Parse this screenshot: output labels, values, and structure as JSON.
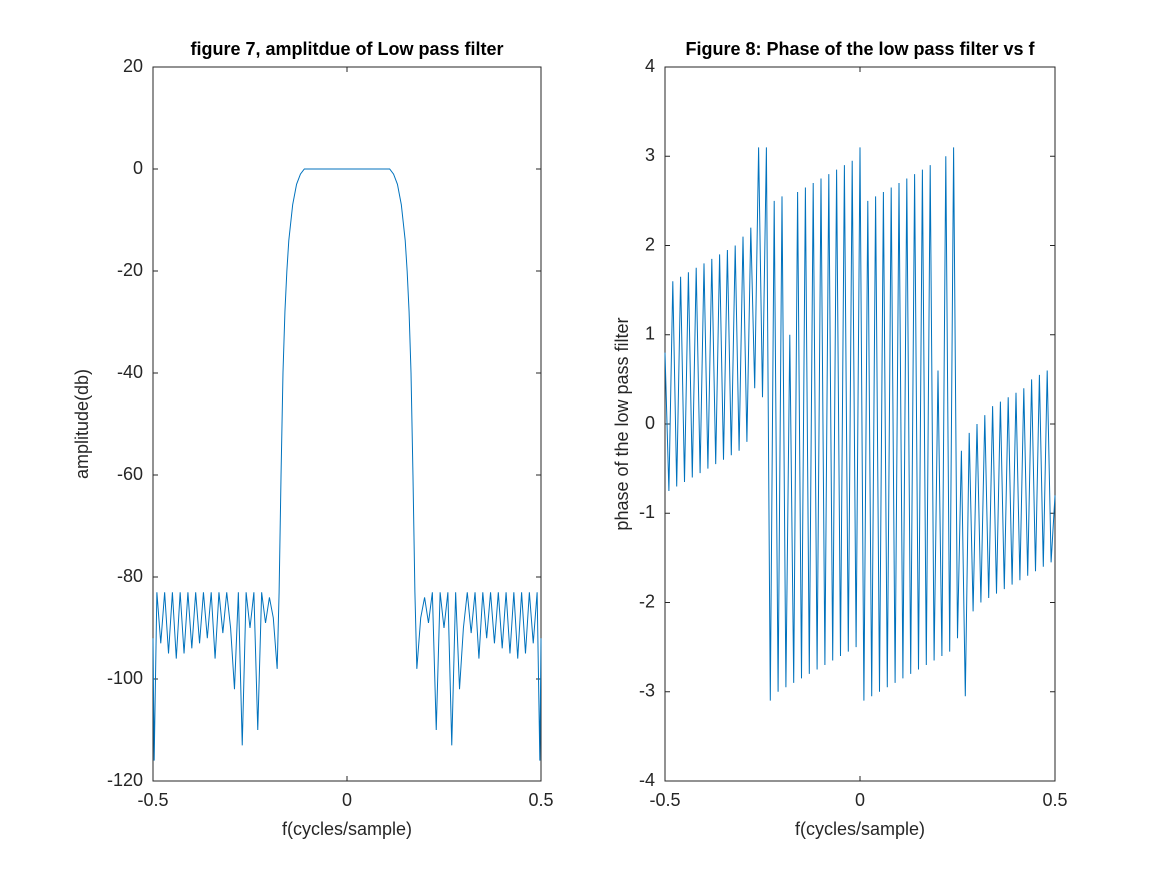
{
  "chart_data": [
    {
      "type": "line",
      "title": "figure 7, amplitdue of Low pass filter",
      "xlabel": "f(cycles/sample)",
      "ylabel": "amplitude(db)",
      "color": "#0072bd",
      "xlim": [
        -0.5,
        0.5
      ],
      "xticks": [
        -0.5,
        0,
        0.5
      ],
      "ylim": [
        -120,
        20
      ],
      "yticks": [
        -120,
        -100,
        -80,
        -60,
        -40,
        -20,
        0,
        20
      ],
      "x": [
        -0.5,
        -0.497,
        -0.49,
        -0.48,
        -0.47,
        -0.46,
        -0.45,
        -0.44,
        -0.43,
        -0.42,
        -0.41,
        -0.4,
        -0.39,
        -0.38,
        -0.37,
        -0.36,
        -0.35,
        -0.34,
        -0.33,
        -0.32,
        -0.31,
        -0.3,
        -0.29,
        -0.28,
        -0.27,
        -0.26,
        -0.25,
        -0.24,
        -0.23,
        -0.22,
        -0.21,
        -0.2,
        -0.19,
        -0.18,
        -0.175,
        -0.17,
        -0.165,
        -0.16,
        -0.155,
        -0.15,
        -0.14,
        -0.13,
        -0.12,
        -0.11,
        0,
        0.11,
        0.12,
        0.13,
        0.14,
        0.15,
        0.155,
        0.16,
        0.165,
        0.17,
        0.175,
        0.18,
        0.19,
        0.2,
        0.21,
        0.22,
        0.23,
        0.24,
        0.25,
        0.26,
        0.27,
        0.28,
        0.29,
        0.3,
        0.31,
        0.32,
        0.33,
        0.34,
        0.35,
        0.36,
        0.37,
        0.38,
        0.39,
        0.4,
        0.41,
        0.42,
        0.43,
        0.44,
        0.45,
        0.46,
        0.47,
        0.48,
        0.49,
        0.497,
        0.5
      ],
      "values": [
        -92,
        -116,
        -83,
        -93,
        -83,
        -95,
        -83,
        -96,
        -83,
        -95,
        -83,
        -94,
        -83,
        -93,
        -83,
        -92,
        -83,
        -96,
        -83,
        -91,
        -83,
        -90,
        -102,
        -83,
        -113,
        -83,
        -90,
        -83,
        -110,
        -83,
        -89,
        -84,
        -88,
        -98,
        -83,
        -60,
        -40,
        -28,
        -20,
        -14,
        -7,
        -3,
        -1,
        0,
        0,
        0,
        -1,
        -3,
        -7,
        -14,
        -20,
        -28,
        -40,
        -60,
        -83,
        -98,
        -88,
        -84,
        -89,
        -83,
        -110,
        -83,
        -90,
        -83,
        -113,
        -83,
        -102,
        -90,
        -83,
        -91,
        -83,
        -96,
        -83,
        -92,
        -83,
        -93,
        -83,
        -94,
        -83,
        -95,
        -83,
        -96,
        -83,
        -95,
        -83,
        -93,
        -83,
        -116,
        -92
      ]
    },
    {
      "type": "line",
      "title": "Figure 8: Phase of the low pass filter vs f",
      "xlabel": "f(cycles/sample)",
      "ylabel": "phase of the low pass filter",
      "color": "#0072bd",
      "xlim": [
        -0.5,
        0.5
      ],
      "xticks": [
        -0.5,
        0,
        0.5
      ],
      "ylim": [
        -4,
        4
      ],
      "yticks": [
        -4,
        -3,
        -2,
        -1,
        0,
        1,
        2,
        3,
        4
      ],
      "x": [
        -0.5,
        -0.49,
        -0.48,
        -0.47,
        -0.46,
        -0.45,
        -0.44,
        -0.43,
        -0.42,
        -0.41,
        -0.4,
        -0.39,
        -0.38,
        -0.37,
        -0.36,
        -0.35,
        -0.34,
        -0.33,
        -0.32,
        -0.31,
        -0.3,
        -0.29,
        -0.28,
        -0.27,
        -0.26,
        -0.25,
        -0.24,
        -0.23,
        -0.22,
        -0.21,
        -0.2,
        -0.19,
        -0.18,
        -0.17,
        -0.16,
        -0.15,
        -0.14,
        -0.13,
        -0.12,
        -0.11,
        -0.1,
        -0.09,
        -0.08,
        -0.07,
        -0.06,
        -0.05,
        -0.04,
        -0.03,
        -0.02,
        -0.01,
        0,
        0.01,
        0.02,
        0.03,
        0.04,
        0.05,
        0.06,
        0.07,
        0.08,
        0.09,
        0.1,
        0.11,
        0.12,
        0.13,
        0.14,
        0.15,
        0.16,
        0.17,
        0.18,
        0.19,
        0.2,
        0.21,
        0.22,
        0.23,
        0.24,
        0.25,
        0.26,
        0.27,
        0.28,
        0.29,
        0.3,
        0.31,
        0.32,
        0.33,
        0.34,
        0.35,
        0.36,
        0.37,
        0.38,
        0.39,
        0.4,
        0.41,
        0.42,
        0.43,
        0.44,
        0.45,
        0.46,
        0.47,
        0.48,
        0.49,
        0.5
      ],
      "values": [
        0.8,
        -0.75,
        1.6,
        -0.7,
        1.65,
        -0.65,
        1.7,
        -0.6,
        1.75,
        -0.55,
        1.8,
        -0.5,
        1.85,
        -0.45,
        1.9,
        -0.4,
        1.95,
        -0.35,
        2.0,
        -0.3,
        2.1,
        -0.2,
        2.2,
        0.4,
        3.1,
        0.3,
        3.1,
        -3.1,
        2.5,
        -3.0,
        2.55,
        -2.95,
        1.0,
        -2.9,
        2.6,
        -2.85,
        2.65,
        -2.8,
        2.7,
        -2.75,
        2.75,
        -2.7,
        2.8,
        -2.65,
        2.85,
        -2.6,
        2.9,
        -2.55,
        2.95,
        -2.5,
        3.1,
        -3.1,
        2.5,
        -3.05,
        2.55,
        -3.0,
        2.6,
        -2.95,
        2.65,
        -2.9,
        2.7,
        -2.85,
        2.75,
        -2.8,
        2.8,
        -2.75,
        2.85,
        -2.7,
        2.9,
        -2.65,
        0.6,
        -2.6,
        3.0,
        -2.55,
        3.1,
        -2.4,
        -0.3,
        -3.05,
        -0.1,
        -2.1,
        0.0,
        -2.0,
        0.1,
        -1.95,
        0.2,
        -1.9,
        0.25,
        -1.85,
        0.3,
        -1.8,
        0.35,
        -1.75,
        0.4,
        -1.7,
        0.5,
        -1.65,
        0.55,
        -1.6,
        0.6,
        -1.55,
        -0.8
      ]
    }
  ]
}
